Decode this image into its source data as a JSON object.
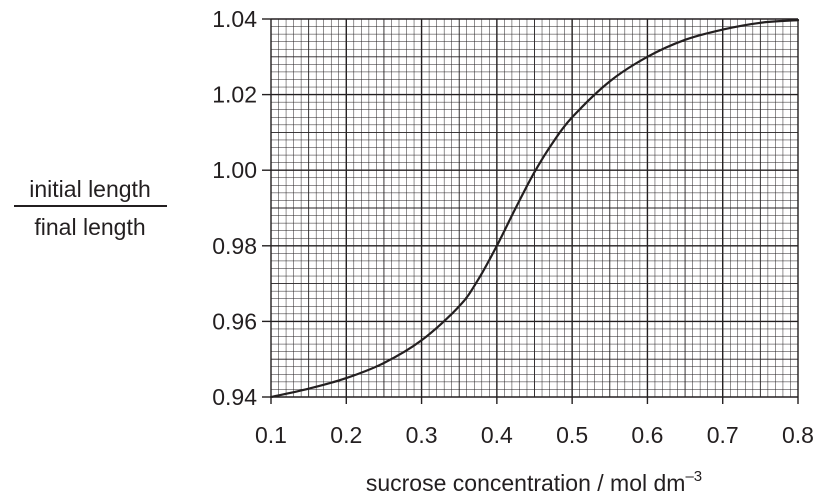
{
  "chart_data": {
    "type": "line",
    "title": "",
    "xlabel": "sucrose concentration / mol dm",
    "xlabel_superscript": "–3",
    "ylabel_numerator": "initial length",
    "ylabel_denominator": "final length",
    "xlim": [
      0.1,
      0.8
    ],
    "ylim": [
      0.94,
      1.04
    ],
    "x_ticks": [
      "0.1",
      "0.2",
      "0.3",
      "0.4",
      "0.5",
      "0.6",
      "0.7",
      "0.8"
    ],
    "y_ticks": [
      "0.94",
      "0.96",
      "0.98",
      "1.00",
      "1.02",
      "1.04"
    ],
    "grid": true,
    "series": [
      {
        "color": "#231f20",
        "x": [
          0.1,
          0.15,
          0.2,
          0.25,
          0.3,
          0.35,
          0.375,
          0.4,
          0.425,
          0.45,
          0.475,
          0.5,
          0.55,
          0.6,
          0.65,
          0.7,
          0.75,
          0.8
        ],
        "y": [
          0.94,
          0.9422,
          0.945,
          0.949,
          0.955,
          0.964,
          0.971,
          0.98,
          0.99,
          0.9995,
          1.0075,
          1.014,
          1.0235,
          1.03,
          1.0345,
          1.0372,
          1.039,
          1.0397
        ]
      }
    ]
  }
}
